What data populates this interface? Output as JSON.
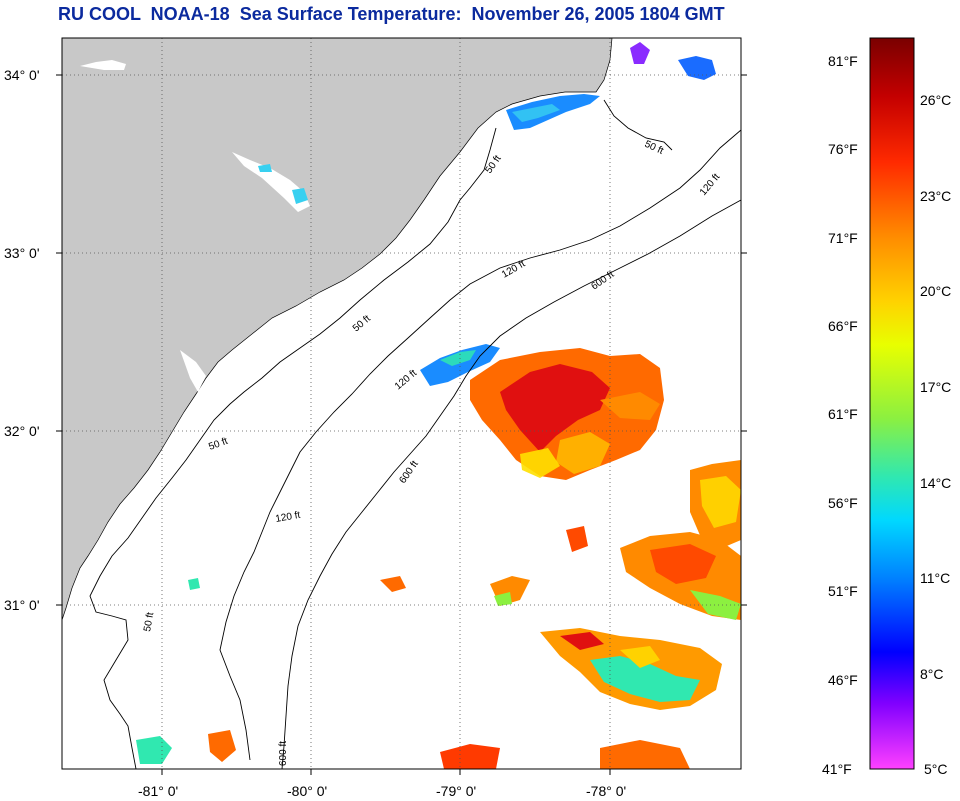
{
  "title": "RU COOL  NOAA-18  Sea Surface Temperature:  November 26, 2005 1804 GMT",
  "map": {
    "lon_labels": [
      "-81° 0'",
      "-80° 0'",
      "-79° 0'",
      "-78° 0'"
    ],
    "lat_labels": [
      "34° 0'",
      "33° 0'",
      "32° 0'",
      "31° 0'"
    ],
    "contour_labels": [
      "50 ft",
      "50 ft",
      "120 ft",
      "600 ft",
      "120 ft",
      "50 ft",
      "120 ft",
      "600 ft",
      "50 ft",
      "120 ft",
      "600 ft",
      "50 ft"
    ],
    "colors": {
      "land": "#c8c8c8",
      "grid": "#555555",
      "contour": "#000000"
    }
  },
  "colorbar": {
    "fahrenheit": [
      "81°F",
      "76°F",
      "71°F",
      "66°F",
      "61°F",
      "56°F",
      "51°F",
      "46°F",
      "41°F"
    ],
    "celsius": [
      "26°C",
      "23°C",
      "20°C",
      "17°C",
      "14°C",
      "11°C",
      "8°C",
      "5°C"
    ],
    "gradient": [
      "#7a0000",
      "#c40000",
      "#ff2a00",
      "#ff8a00",
      "#ffd200",
      "#e8ff00",
      "#8cf040",
      "#30e8b0",
      "#00d8ff",
      "#0080ff",
      "#0000ff",
      "#8000ff",
      "#ff40ff"
    ]
  }
}
